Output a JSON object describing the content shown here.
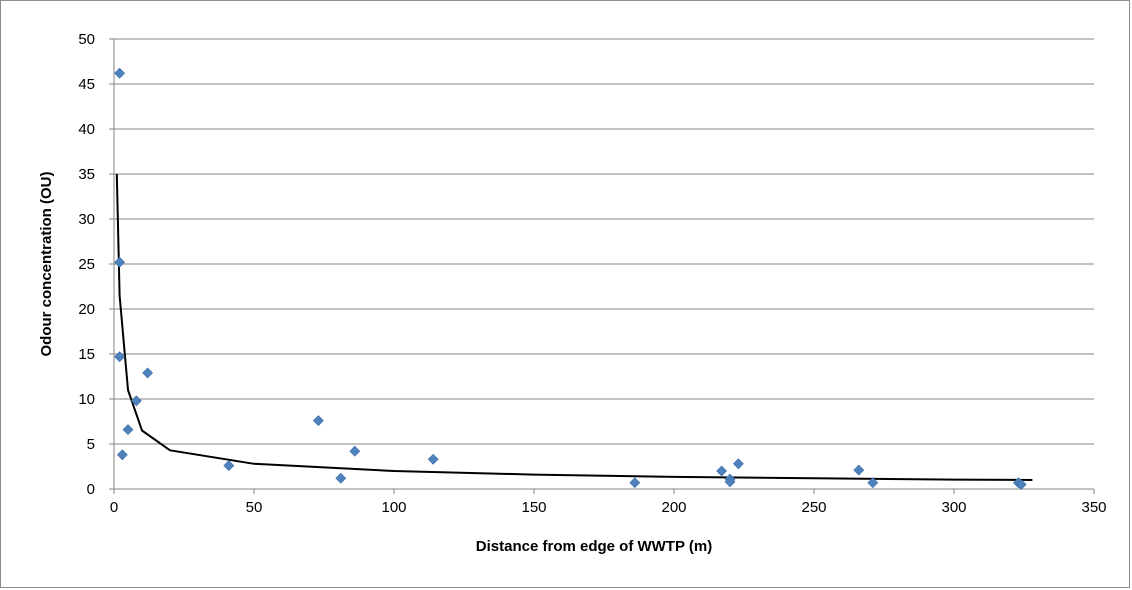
{
  "chart_data": {
    "type": "scatter",
    "title": "",
    "xlabel": "Distance from edge of WWTP (m)",
    "ylabel": "Odour concentration (OU)",
    "xlim": [
      0,
      350
    ],
    "ylim": [
      0,
      50
    ],
    "xticks": [
      0,
      50,
      100,
      150,
      200,
      250,
      300,
      350
    ],
    "yticks": [
      0,
      5,
      10,
      15,
      20,
      25,
      30,
      35,
      40,
      45,
      50
    ],
    "xtick_labels": [
      "0",
      "50",
      "100",
      "150",
      "200",
      "250",
      "300",
      "350"
    ],
    "ytick_labels": [
      "0",
      "5",
      "10",
      "15",
      "20",
      "25",
      "30",
      "35",
      "40",
      "45",
      "50"
    ],
    "grid": "horizontal",
    "legend": "none",
    "colors": {
      "points": "#4f81bd",
      "trendline": "#000000",
      "gridlines": "#868686"
    },
    "series": [
      {
        "points": [
          {
            "x": 2,
            "y": 46.2
          },
          {
            "x": 2,
            "y": 25.2
          },
          {
            "x": 2,
            "y": 14.7
          },
          {
            "x": 3,
            "y": 3.8
          },
          {
            "x": 5,
            "y": 6.6
          },
          {
            "x": 8,
            "y": 9.8
          },
          {
            "x": 12,
            "y": 12.9
          },
          {
            "x": 41,
            "y": 2.6
          },
          {
            "x": 73,
            "y": 7.6
          },
          {
            "x": 81,
            "y": 1.2
          },
          {
            "x": 86,
            "y": 4.2
          },
          {
            "x": 114,
            "y": 3.3
          },
          {
            "x": 186,
            "y": 0.7
          },
          {
            "x": 217,
            "y": 2.0
          },
          {
            "x": 220,
            "y": 1.1
          },
          {
            "x": 220,
            "y": 0.8
          },
          {
            "x": 223,
            "y": 2.8
          },
          {
            "x": 266,
            "y": 2.1
          },
          {
            "x": 271,
            "y": 0.7
          },
          {
            "x": 323,
            "y": 0.7
          },
          {
            "x": 324,
            "y": 0.5
          }
        ]
      }
    ],
    "trendline": {
      "type": "power",
      "points": [
        {
          "x": 1,
          "y": 35.0
        },
        {
          "x": 2,
          "y": 21.5
        },
        {
          "x": 5,
          "y": 11.0
        },
        {
          "x": 10,
          "y": 6.5
        },
        {
          "x": 20,
          "y": 4.3
        },
        {
          "x": 50,
          "y": 2.8
        },
        {
          "x": 100,
          "y": 2.0
        },
        {
          "x": 150,
          "y": 1.6
        },
        {
          "x": 200,
          "y": 1.35
        },
        {
          "x": 250,
          "y": 1.2
        },
        {
          "x": 300,
          "y": 1.05
        },
        {
          "x": 328,
          "y": 1.0
        }
      ]
    }
  }
}
